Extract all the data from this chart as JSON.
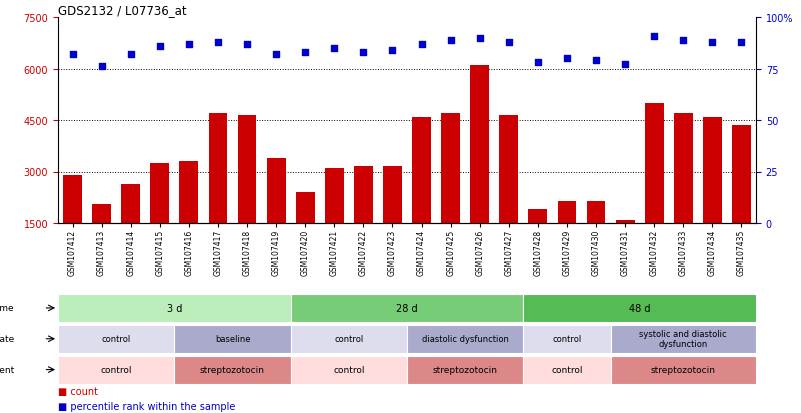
{
  "title": "GDS2132 / L07736_at",
  "samples": [
    "GSM107412",
    "GSM107413",
    "GSM107414",
    "GSM107415",
    "GSM107416",
    "GSM107417",
    "GSM107418",
    "GSM107419",
    "GSM107420",
    "GSM107421",
    "GSM107422",
    "GSM107423",
    "GSM107424",
    "GSM107425",
    "GSM107426",
    "GSM107427",
    "GSM107428",
    "GSM107429",
    "GSM107430",
    "GSM107431",
    "GSM107432",
    "GSM107433",
    "GSM107434",
    "GSM107435"
  ],
  "counts": [
    2900,
    2050,
    2650,
    3250,
    3300,
    4700,
    4650,
    3400,
    2400,
    3100,
    3150,
    3150,
    4600,
    4700,
    6100,
    4650,
    1900,
    2150,
    2150,
    1600,
    5000,
    4700,
    4600,
    4350
  ],
  "percentile": [
    82,
    76,
    82,
    86,
    87,
    88,
    87,
    82,
    83,
    85,
    83,
    84,
    87,
    89,
    90,
    88,
    78,
    80,
    79,
    77,
    91,
    89,
    88,
    88
  ],
  "ylim_left": [
    1500,
    7500
  ],
  "ylim_right": [
    0,
    100
  ],
  "yticks_left": [
    1500,
    3000,
    4500,
    6000,
    7500
  ],
  "yticks_right": [
    0,
    25,
    50,
    75,
    100
  ],
  "ytick_labels_left": [
    "1500",
    "3000",
    "4500",
    "6000",
    "7500"
  ],
  "ytick_labels_right": [
    "0",
    "25",
    "50",
    "75",
    "100%"
  ],
  "bar_color": "#cc0000",
  "dot_color": "#0000cc",
  "time_groups": [
    {
      "label": "3 d",
      "start": 0,
      "end": 8,
      "color": "#bbeebb"
    },
    {
      "label": "28 d",
      "start": 8,
      "end": 16,
      "color": "#77cc77"
    },
    {
      "label": "48 d",
      "start": 16,
      "end": 24,
      "color": "#55bb55"
    }
  ],
  "disease_groups": [
    {
      "label": "control",
      "start": 0,
      "end": 4,
      "color": "#ddddee"
    },
    {
      "label": "baseline",
      "start": 4,
      "end": 8,
      "color": "#aaaacc"
    },
    {
      "label": "control",
      "start": 8,
      "end": 12,
      "color": "#ddddee"
    },
    {
      "label": "diastolic dysfunction",
      "start": 12,
      "end": 16,
      "color": "#aaaacc"
    },
    {
      "label": "control",
      "start": 16,
      "end": 19,
      "color": "#ddddee"
    },
    {
      "label": "systolic and diastolic\ndysfunction",
      "start": 19,
      "end": 24,
      "color": "#aaaacc"
    }
  ],
  "agent_groups": [
    {
      "label": "control",
      "start": 0,
      "end": 4,
      "color": "#ffdddd"
    },
    {
      "label": "streptozotocin",
      "start": 4,
      "end": 8,
      "color": "#dd8888"
    },
    {
      "label": "control",
      "start": 8,
      "end": 12,
      "color": "#ffdddd"
    },
    {
      "label": "streptozotocin",
      "start": 12,
      "end": 16,
      "color": "#dd8888"
    },
    {
      "label": "control",
      "start": 16,
      "end": 19,
      "color": "#ffdddd"
    },
    {
      "label": "streptozotocin",
      "start": 19,
      "end": 24,
      "color": "#dd8888"
    }
  ]
}
